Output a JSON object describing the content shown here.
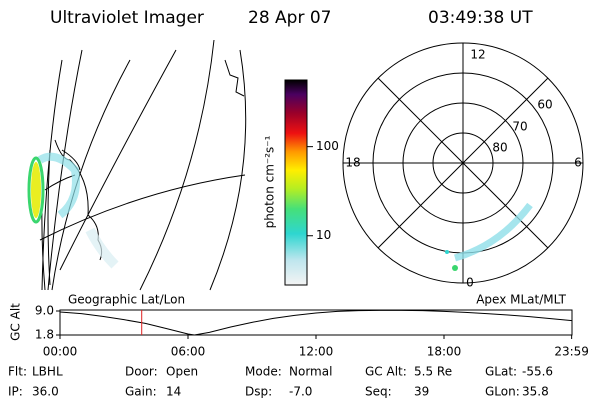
{
  "header": {
    "title": "Ultraviolet Imager",
    "date": "28 Apr 07",
    "time": "03:49:38 UT"
  },
  "colorbar": {
    "label": "photon cm⁻²s⁻¹",
    "scale": "log",
    "lim": [
      2.8,
      560
    ],
    "ticks": [
      10,
      100
    ]
  },
  "polar": {
    "mlt_labels": [
      "12",
      "18",
      "6",
      "0"
    ],
    "lat_labels": [
      "60",
      "70",
      "80"
    ]
  },
  "altitude": {
    "ylabel": "GC Alt",
    "left_title": "Geographic Lat/Lon",
    "right_title": "Apex MLat/MLT",
    "ylim": [
      1.8,
      9.3
    ],
    "yticks": [
      {
        "value": 9,
        "label": "9.0"
      },
      1.8
    ],
    "xlim": [
      0,
      24
    ],
    "xticks": [
      {
        "value": 0,
        "label": "00:00"
      },
      {
        "value": 6,
        "label": "06:00"
      },
      {
        "value": 12,
        "label": "12:00"
      },
      {
        "value": 18,
        "label": "18:00"
      },
      {
        "value": 23.983,
        "label": "23:59"
      }
    ],
    "x": [
      0,
      1,
      2,
      3,
      4,
      5,
      6,
      6.3,
      7,
      8,
      9,
      10,
      11,
      12,
      13,
      14,
      15,
      16,
      17,
      18,
      19,
      20,
      21,
      22,
      23,
      24
    ],
    "values": [
      8.7,
      8.2,
      7.4,
      6.4,
      5.3,
      3.7,
      2.1,
      1.8,
      2.6,
      4.2,
      5.6,
      6.8,
      7.7,
      8.4,
      8.9,
      9.1,
      9.2,
      9.2,
      9.1,
      8.9,
      8.6,
      8.2,
      7.8,
      7.3,
      6.7,
      6.1
    ],
    "marker": 3.83
  },
  "footer": [
    [
      {
        "label": "Flt:",
        "value": "LBHL"
      },
      {
        "label": "Door:",
        "value": "Open"
      },
      {
        "label": "Mode:",
        "value": "Normal"
      },
      {
        "label": "GC Alt:",
        "value": "5.5 Re"
      },
      {
        "label": "GLat:",
        "value": "-55.6"
      }
    ],
    [
      {
        "label": "IP:",
        "value": "36.0"
      },
      {
        "label": "Gain:",
        "value": "14"
      },
      {
        "label": "Dsp:",
        "value": "-7.0"
      },
      {
        "label": "Seq:",
        "value": "39"
      },
      {
        "label": "GLon:",
        "value": "35.8"
      }
    ]
  ]
}
